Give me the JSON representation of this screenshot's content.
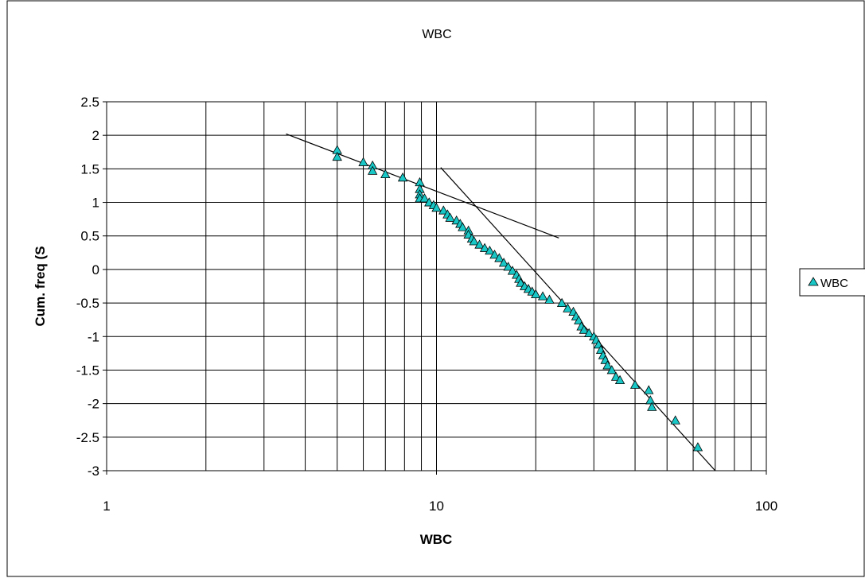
{
  "chart_data": {
    "type": "scatter",
    "title": "WBC",
    "xlabel": "WBC",
    "ylabel": "Cum. freq (S",
    "x_scale": "log",
    "xlim": [
      1,
      100
    ],
    "ylim": [
      -3,
      2.5
    ],
    "x_ticks": [
      "1",
      "10",
      "100"
    ],
    "y_ticks": [
      "2.5",
      "2",
      "1.5",
      "1",
      "0.5",
      "0",
      "-0.5",
      "-1",
      "-1.5",
      "-2",
      "-2.5",
      "-3"
    ],
    "grid": true,
    "legend_position": "right",
    "marker_color": "#19c7c7",
    "series": [
      {
        "name": "WBC",
        "marker": "triangle",
        "points": [
          [
            5.0,
            1.78
          ],
          [
            5.0,
            1.68
          ],
          [
            6.0,
            1.6
          ],
          [
            6.4,
            1.55
          ],
          [
            6.4,
            1.47
          ],
          [
            7.0,
            1.42
          ],
          [
            7.9,
            1.37
          ],
          [
            8.9,
            1.3
          ],
          [
            8.9,
            1.2
          ],
          [
            8.9,
            1.12
          ],
          [
            8.9,
            1.06
          ],
          [
            9.2,
            1.06
          ],
          [
            9.5,
            1.0
          ],
          [
            9.8,
            0.96
          ],
          [
            10.0,
            0.92
          ],
          [
            10.5,
            0.88
          ],
          [
            10.8,
            0.82
          ],
          [
            11.0,
            0.77
          ],
          [
            11.5,
            0.73
          ],
          [
            11.8,
            0.68
          ],
          [
            12.0,
            0.63
          ],
          [
            12.5,
            0.58
          ],
          [
            12.5,
            0.52
          ],
          [
            12.8,
            0.46
          ],
          [
            13.0,
            0.42
          ],
          [
            13.5,
            0.37
          ],
          [
            14.0,
            0.32
          ],
          [
            14.5,
            0.28
          ],
          [
            15.0,
            0.22
          ],
          [
            15.5,
            0.17
          ],
          [
            16.0,
            0.1
          ],
          [
            16.5,
            0.04
          ],
          [
            17.0,
            -0.02
          ],
          [
            17.5,
            -0.08
          ],
          [
            17.8,
            -0.14
          ],
          [
            18.0,
            -0.2
          ],
          [
            18.5,
            -0.25
          ],
          [
            19.0,
            -0.29
          ],
          [
            19.5,
            -0.33
          ],
          [
            20.0,
            -0.37
          ],
          [
            21.0,
            -0.4
          ],
          [
            22.0,
            -0.45
          ],
          [
            24.0,
            -0.5
          ],
          [
            25.0,
            -0.58
          ],
          [
            26.0,
            -0.63
          ],
          [
            26.5,
            -0.7
          ],
          [
            27.0,
            -0.76
          ],
          [
            27.5,
            -0.85
          ],
          [
            28.0,
            -0.9
          ],
          [
            29.0,
            -0.95
          ],
          [
            30.0,
            -1.0
          ],
          [
            30.5,
            -1.05
          ],
          [
            31.0,
            -1.12
          ],
          [
            31.5,
            -1.2
          ],
          [
            32.0,
            -1.28
          ],
          [
            32.5,
            -1.35
          ],
          [
            33.0,
            -1.43
          ],
          [
            34.0,
            -1.5
          ],
          [
            35.0,
            -1.6
          ],
          [
            36.0,
            -1.65
          ],
          [
            40.0,
            -1.72
          ],
          [
            44.0,
            -1.8
          ],
          [
            44.5,
            -1.95
          ],
          [
            45.0,
            -2.05
          ],
          [
            53.0,
            -2.25
          ],
          [
            62.0,
            -2.65
          ]
        ]
      }
    ],
    "trendlines": [
      {
        "from": [
          3.5,
          2.02
        ],
        "to": [
          23.5,
          0.47
        ]
      },
      {
        "from": [
          10.3,
          1.52
        ],
        "to": [
          70.0,
          -3.0
        ]
      }
    ]
  }
}
